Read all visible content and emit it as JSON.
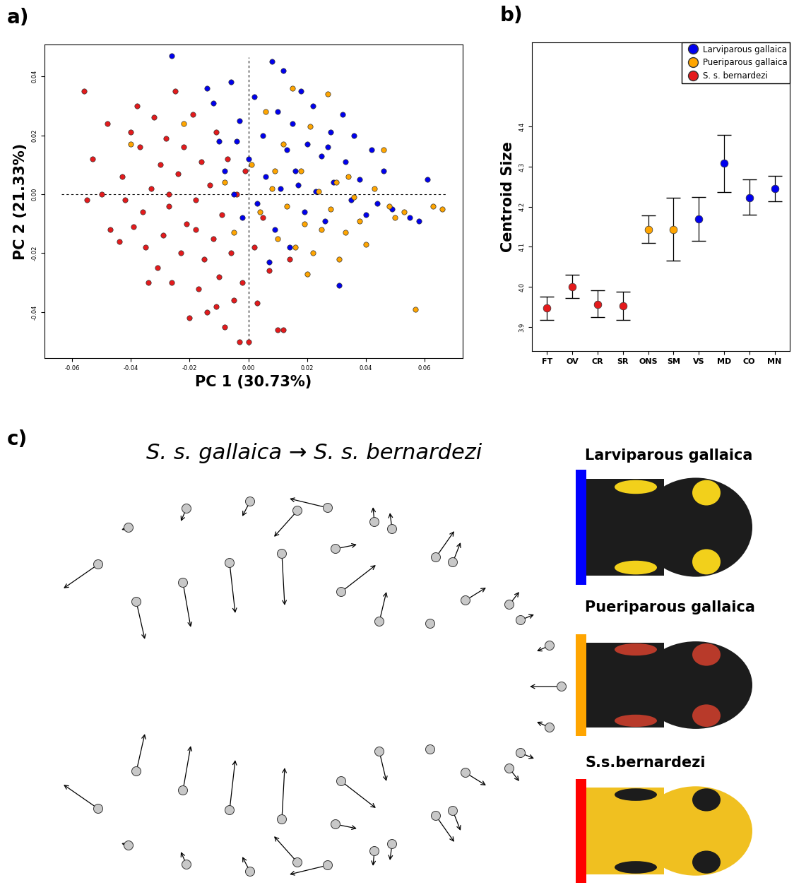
{
  "panel_labels": [
    "a)",
    "b)",
    "c)"
  ],
  "chart_data": [
    {
      "type": "scatter",
      "x_label": "PC 1 (30.73%)",
      "y_label": "PC 2 (21.33%)",
      "xlim": [
        -0.0694,
        0.073
      ],
      "ylim": [
        -0.0556,
        0.0508
      ],
      "xticks": [
        {
          "value": -0.06,
          "label": "-0.06"
        },
        {
          "value": -0.04,
          "label": "-0.04"
        },
        {
          "value": -0.02,
          "label": "-0.02"
        },
        {
          "value": 0.0,
          "label": "0.00"
        },
        {
          "value": 0.02,
          "label": "0.02"
        },
        {
          "value": 0.04,
          "label": "0.04"
        },
        {
          "value": 0.06,
          "label": "0.06"
        }
      ],
      "yticks": [
        {
          "value": -0.04,
          "label": "-0.04"
        },
        {
          "value": -0.02,
          "label": "-0.02"
        },
        {
          "value": 0.0,
          "label": "0.00"
        },
        {
          "value": 0.02,
          "label": "0.02"
        },
        {
          "value": 0.04,
          "label": "0.04"
        }
      ],
      "series": [
        {
          "color": "#e41a1c",
          "x": [
            -0.056,
            -0.055,
            -0.053,
            -0.05,
            -0.048,
            -0.047,
            -0.043,
            -0.042,
            -0.04,
            -0.039,
            -0.038,
            -0.037,
            -0.036,
            -0.035,
            -0.033,
            -0.032,
            -0.031,
            -0.03,
            -0.029,
            -0.028,
            -0.027,
            -0.026,
            -0.025,
            -0.024,
            -0.023,
            -0.022,
            -0.021,
            -0.02,
            -0.019,
            -0.018,
            -0.017,
            -0.016,
            -0.015,
            -0.014,
            -0.013,
            -0.012,
            -0.011,
            -0.01,
            -0.009,
            -0.008,
            -0.007,
            -0.006,
            -0.005,
            -0.004,
            -0.003,
            -0.002,
            -0.001,
            0.0,
            0.002,
            0.003,
            0.005,
            0.007,
            0.01,
            0.012,
            0.014,
            -0.027,
            -0.044,
            -0.034,
            -0.018,
            -0.011
          ],
          "y": [
            0.035,
            -0.002,
            0.012,
            0.0,
            0.024,
            -0.012,
            0.006,
            -0.002,
            0.021,
            -0.011,
            0.03,
            0.016,
            -0.006,
            -0.018,
            0.002,
            0.026,
            -0.025,
            0.01,
            -0.014,
            0.019,
            -0.004,
            -0.03,
            0.035,
            0.007,
            -0.02,
            0.016,
            -0.01,
            -0.042,
            0.027,
            -0.002,
            -0.032,
            0.011,
            -0.022,
            -0.04,
            0.003,
            -0.015,
            0.021,
            -0.028,
            -0.007,
            -0.045,
            0.012,
            -0.02,
            -0.036,
            0.0,
            -0.05,
            -0.03,
            0.008,
            -0.05,
            -0.018,
            -0.037,
            -0.008,
            -0.026,
            -0.046,
            -0.046,
            -0.022,
            0.0,
            -0.016,
            -0.03,
            -0.012,
            -0.038
          ]
        },
        {
          "color": "#0000ee",
          "x": [
            -0.026,
            -0.014,
            -0.012,
            -0.01,
            -0.008,
            -0.006,
            -0.005,
            -0.003,
            -0.002,
            0.0,
            0.002,
            0.003,
            0.005,
            0.006,
            0.008,
            0.009,
            0.01,
            0.011,
            0.012,
            0.013,
            0.014,
            0.015,
            0.016,
            0.018,
            0.019,
            0.02,
            0.022,
            0.023,
            0.025,
            0.026,
            0.028,
            0.029,
            0.031,
            0.032,
            0.033,
            0.035,
            0.036,
            0.038,
            0.04,
            0.042,
            0.044,
            0.046,
            0.049,
            0.055,
            0.058,
            0.061,
            -0.004,
            0.007,
            0.017,
            0.027
          ],
          "y": [
            0.047,
            0.036,
            0.031,
            0.018,
            0.008,
            0.038,
            0.0,
            0.025,
            -0.008,
            0.012,
            0.033,
            -0.003,
            0.02,
            0.006,
            0.045,
            -0.012,
            0.028,
            0.002,
            0.042,
            0.015,
            -0.018,
            0.024,
            0.008,
            0.035,
            -0.006,
            0.017,
            0.03,
            0.001,
            0.013,
            -0.009,
            0.021,
            0.004,
            -0.031,
            0.027,
            0.011,
            -0.002,
            0.02,
            0.005,
            -0.007,
            0.015,
            -0.003,
            0.008,
            -0.005,
            -0.008,
            -0.009,
            0.005,
            0.018,
            -0.023,
            0.003,
            0.016
          ]
        },
        {
          "color": "#ffa500",
          "x": [
            -0.04,
            -0.022,
            -0.008,
            -0.005,
            0.001,
            0.004,
            0.006,
            0.008,
            0.01,
            0.012,
            0.013,
            0.015,
            0.016,
            0.018,
            0.019,
            0.021,
            0.022,
            0.024,
            0.025,
            0.027,
            0.028,
            0.03,
            0.031,
            0.033,
            0.034,
            0.036,
            0.038,
            0.04,
            0.043,
            0.046,
            0.048,
            0.05,
            0.053,
            0.057,
            0.063,
            0.066,
            0.009,
            0.02
          ],
          "y": [
            0.017,
            0.024,
            0.004,
            -0.013,
            0.01,
            -0.006,
            0.028,
            0.002,
            -0.015,
            0.017,
            -0.004,
            0.036,
            -0.018,
            0.008,
            -0.01,
            0.023,
            -0.02,
            0.001,
            -0.012,
            0.034,
            -0.005,
            0.004,
            -0.022,
            -0.013,
            0.006,
            -0.001,
            -0.009,
            -0.017,
            0.002,
            0.015,
            -0.004,
            -0.008,
            -0.006,
            -0.039,
            -0.004,
            -0.005,
            0.008,
            -0.027
          ]
        }
      ]
    },
    {
      "type": "errorbar",
      "y_label": "Centroid Size",
      "legend": "upper right",
      "categories": [
        "FT",
        "OV",
        "CR",
        "SR",
        "ONS",
        "SM",
        "VS",
        "MD",
        "CO",
        "MN"
      ],
      "ylim": [
        3.84,
        4.61
      ],
      "yticks": [
        3.9,
        4.0,
        4.1,
        4.2,
        4.3,
        4.4
      ],
      "series": [
        {
          "name": "Larviparous gallaica",
          "color": "#0000ee",
          "values": [
            null,
            null,
            null,
            null,
            null,
            null,
            4.17,
            4.308,
            4.223,
            4.245
          ],
          "lower": [
            null,
            null,
            null,
            null,
            null,
            null,
            4.115,
            4.237,
            4.18,
            4.213
          ],
          "upper": [
            null,
            null,
            null,
            null,
            null,
            null,
            4.225,
            4.38,
            4.268,
            4.277
          ]
        },
        {
          "name": "Pueriparous gallaica",
          "color": "#ffa500",
          "values": [
            null,
            null,
            null,
            null,
            4.143,
            4.143,
            null,
            null,
            null,
            null
          ],
          "lower": [
            null,
            null,
            null,
            null,
            4.11,
            4.065,
            null,
            null,
            null,
            null
          ],
          "upper": [
            null,
            null,
            null,
            null,
            4.178,
            4.222,
            null,
            null,
            null,
            null
          ]
        },
        {
          "name": "S. s. bernardezi",
          "color": "#e41a1c",
          "values": [
            3.947,
            4.0,
            3.957,
            3.952,
            null,
            null,
            null,
            null,
            null,
            null
          ],
          "lower": [
            3.918,
            3.972,
            3.925,
            3.918,
            null,
            null,
            null,
            null,
            null,
            null
          ],
          "upper": [
            3.975,
            4.03,
            3.992,
            3.988,
            null,
            null,
            null,
            null,
            null,
            null
          ]
        }
      ]
    }
  ],
  "diagram": {
    "title": "S. s. gallaica → S. s. bernardezi",
    "photos": [
      {
        "label": "Larviparous gallaica",
        "color": "#0000ff"
      },
      {
        "label": "Pueriparous gallaica",
        "color": "#ffa500"
      },
      {
        "label": "S.s.bernardezi",
        "color": "#ff0000"
      }
    ]
  }
}
